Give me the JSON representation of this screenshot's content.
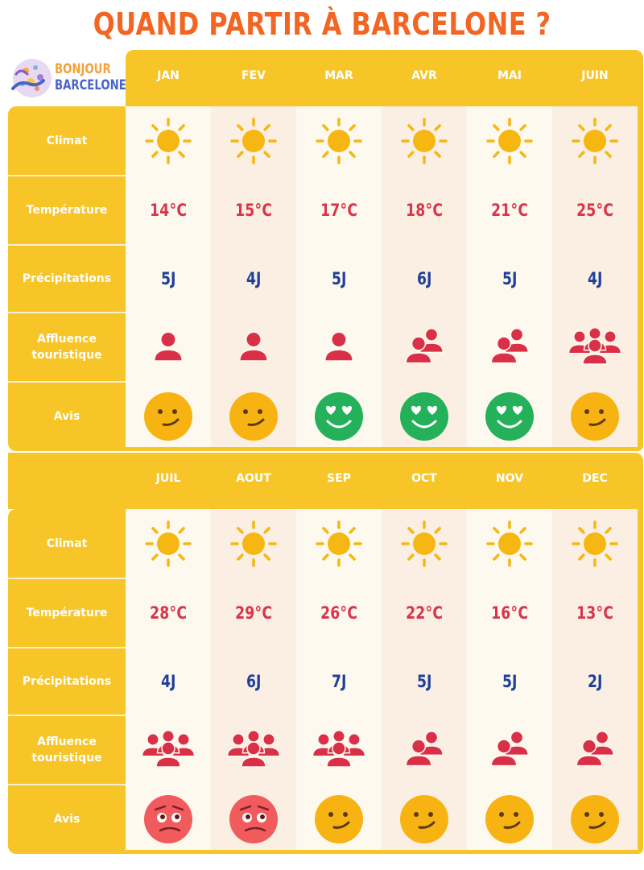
{
  "title": "QUAND PARTIR À BARCELONE ?",
  "logo": {
    "line1": "BONJOUR",
    "line2": "BARCELONE",
    "icon": "gecko-mosaic-icon"
  },
  "row_labels": {
    "climat": "Climat",
    "temperature": "Température",
    "precipitations": "Précipitations",
    "affluence": "Affluence touristique",
    "avis": "Avis"
  },
  "sections": [
    {
      "months": [
        {
          "name": "JAN",
          "climat": "sun",
          "temperature": "14°C",
          "precipitations": "5J",
          "affluence": "single",
          "avis": "neutral"
        },
        {
          "name": "FEV",
          "climat": "sun",
          "temperature": "15°C",
          "precipitations": "4J",
          "affluence": "single",
          "avis": "neutral"
        },
        {
          "name": "MAR",
          "climat": "sun",
          "temperature": "17°C",
          "precipitations": "5J",
          "affluence": "single",
          "avis": "love"
        },
        {
          "name": "AVR",
          "climat": "sun",
          "temperature": "18°C",
          "precipitations": "6J",
          "affluence": "two",
          "avis": "love"
        },
        {
          "name": "MAI",
          "climat": "sun",
          "temperature": "21°C",
          "precipitations": "5J",
          "affluence": "two",
          "avis": "love"
        },
        {
          "name": "JUIN",
          "climat": "sun",
          "temperature": "25°C",
          "precipitations": "4J",
          "affluence": "three",
          "avis": "neutral"
        }
      ]
    },
    {
      "months": [
        {
          "name": "JUIL",
          "climat": "sun",
          "temperature": "28°C",
          "precipitations": "4J",
          "affluence": "three",
          "avis": "bad"
        },
        {
          "name": "AOUT",
          "climat": "sun",
          "temperature": "29°C",
          "precipitations": "6J",
          "affluence": "three",
          "avis": "bad"
        },
        {
          "name": "SEP",
          "climat": "sun",
          "temperature": "26°C",
          "precipitations": "7J",
          "affluence": "three",
          "avis": "neutral"
        },
        {
          "name": "OCT",
          "climat": "sun",
          "temperature": "22°C",
          "precipitations": "5J",
          "affluence": "two",
          "avis": "neutral"
        },
        {
          "name": "NOV",
          "climat": "sun",
          "temperature": "16°C",
          "precipitations": "5J",
          "affluence": "two",
          "avis": "neutral"
        },
        {
          "name": "DEC",
          "climat": "sun",
          "temperature": "13°C",
          "precipitations": "2J",
          "affluence": "two",
          "avis": "neutral"
        }
      ]
    }
  ],
  "colors": {
    "title": "#f26522",
    "band": "#f7c528",
    "col_light": "#fdf9ef",
    "col_dark": "#faefe2",
    "temperature": "#d9344a",
    "precipitations": "#1f3f9a",
    "people": "#d93048",
    "sun": "#f6b713",
    "face_neutral": "#f7b311",
    "face_love": "#25b05a",
    "face_bad": "#f25b5d",
    "divider": "#f5efd8"
  }
}
